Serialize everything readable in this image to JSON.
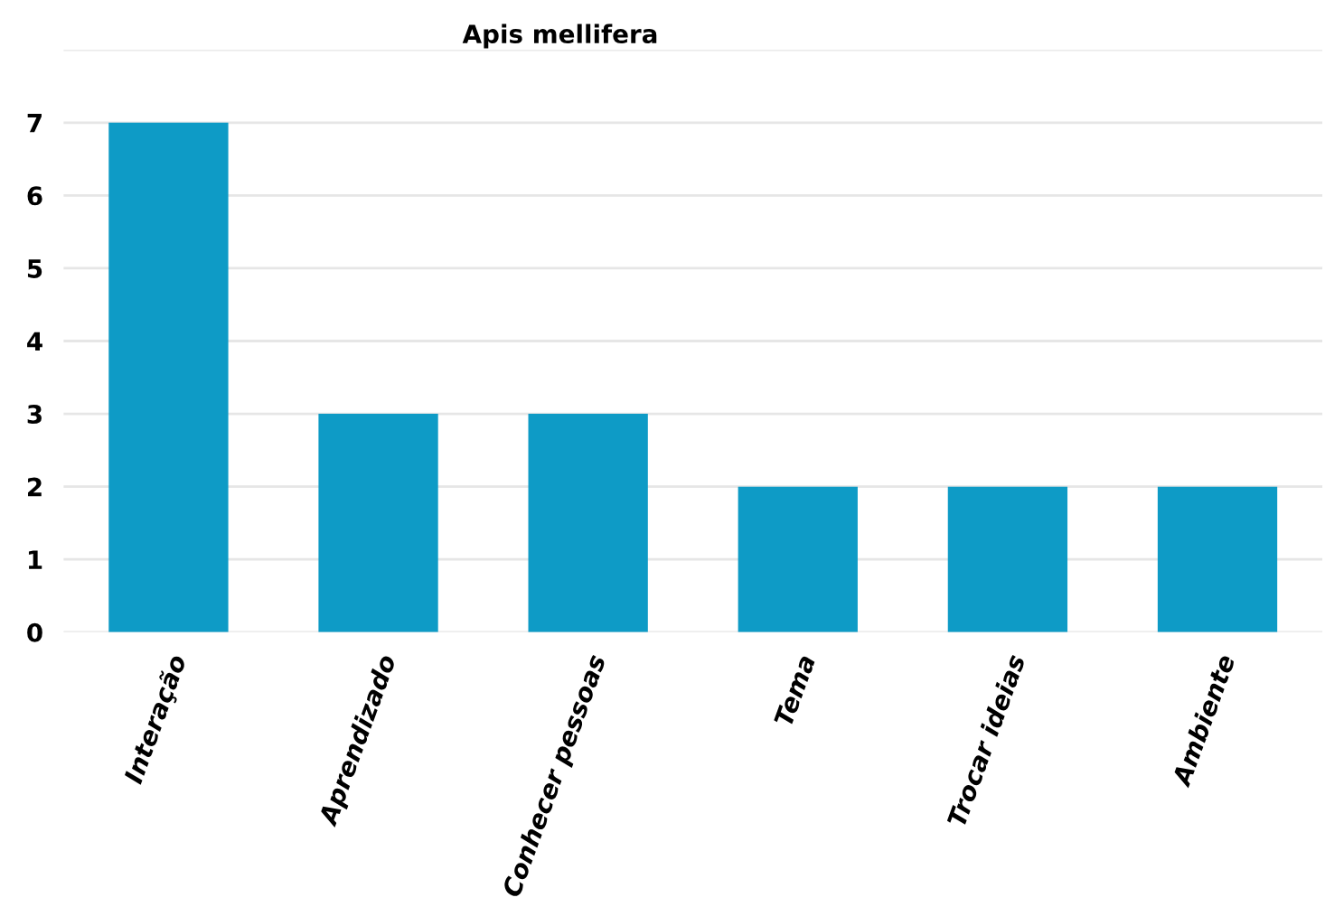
{
  "chart_data": {
    "type": "bar",
    "title": "Apis mellifera",
    "categories": [
      "Interação",
      "Aprendizado",
      "Conhecer pessoas",
      "Tema",
      "Trocar ideias",
      "Ambiente"
    ],
    "values": [
      7,
      3,
      3,
      2,
      2,
      2
    ],
    "color": "#0e9bc6",
    "ylim": [
      0,
      8
    ],
    "yticks": [
      0,
      1,
      2,
      3,
      4,
      5,
      6,
      7,
      {
        "value": 8,
        "label": null
      }
    ],
    "grid": "y"
  }
}
